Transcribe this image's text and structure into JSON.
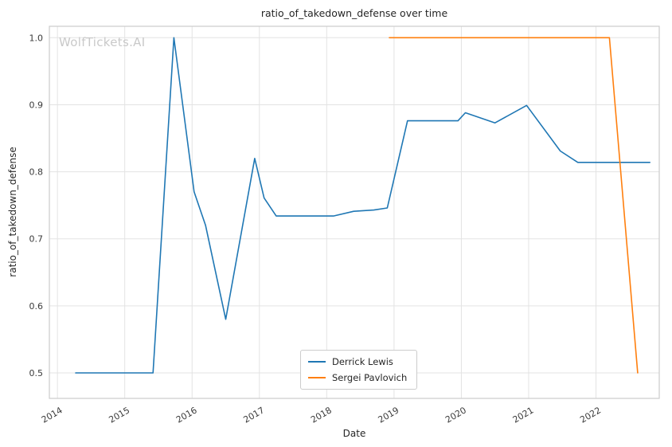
{
  "chart_data": {
    "type": "line",
    "title": "ratio_of_takedown_defense over time",
    "xlabel": "Date",
    "ylabel": "ratio_of_takedown_defense",
    "watermark": "WolfTickets.AI",
    "xlim": [
      2013.88,
      2022.94
    ],
    "ylim": [
      0.462,
      1.017
    ],
    "x_ticks": [
      2014,
      2015,
      2016,
      2017,
      2018,
      2019,
      2020,
      2021,
      2022
    ],
    "y_ticks": [
      0.5,
      0.6,
      0.7,
      0.8,
      0.9,
      1.0
    ],
    "grid": true,
    "grid_color": "#e3e3e3",
    "spine_color": "#cccccc",
    "legend_position": "lower center",
    "series": [
      {
        "name": "Derrick Lewis",
        "color": "#1f77b4",
        "points": [
          [
            2014.27,
            0.5
          ],
          [
            2015.42,
            0.5
          ],
          [
            2015.73,
            1.0
          ],
          [
            2016.03,
            0.77
          ],
          [
            2016.2,
            0.72
          ],
          [
            2016.5,
            0.58
          ],
          [
            2016.93,
            0.82
          ],
          [
            2017.07,
            0.761
          ],
          [
            2017.25,
            0.734
          ],
          [
            2018.1,
            0.734
          ],
          [
            2018.4,
            0.741
          ],
          [
            2018.7,
            0.743
          ],
          [
            2018.9,
            0.746
          ],
          [
            2019.2,
            0.876
          ],
          [
            2019.95,
            0.876
          ],
          [
            2020.06,
            0.888
          ],
          [
            2020.5,
            0.873
          ],
          [
            2020.97,
            0.899
          ],
          [
            2021.47,
            0.831
          ],
          [
            2021.73,
            0.814
          ],
          [
            2022.8,
            0.814
          ]
        ]
      },
      {
        "name": "Sergei Pavlovich",
        "color": "#ff7f0e",
        "points": [
          [
            2018.93,
            1.0
          ],
          [
            2022.2,
            1.0
          ],
          [
            2022.62,
            0.5
          ]
        ]
      }
    ]
  }
}
